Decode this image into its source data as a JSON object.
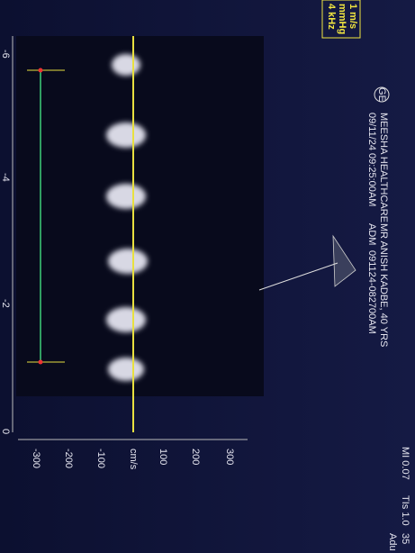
{
  "header": {
    "brand": "GE",
    "clinic": "MEESHA HEALTHCARE",
    "datetime": "09/11/24 09:25:00AM",
    "patient": "MR ANISH KADBE, 40 YRS",
    "operator": "ADM",
    "exam_id": "091124-082700AM",
    "mi": "MI 0.07",
    "tis": "TIs 1.0",
    "extra": "35",
    "preset": "Adu"
  },
  "doppler_box": {
    "lines": [
      "1 m/s",
      "mmHg",
      "4 kHz"
    ]
  },
  "velocity_scale": {
    "unit": "cm/s",
    "ticks": [
      "300",
      "200",
      "100",
      "-100",
      "-200",
      "-300"
    ]
  },
  "time_scale": {
    "ticks": [
      "-6",
      "-4",
      "-2",
      "0"
    ]
  }
}
